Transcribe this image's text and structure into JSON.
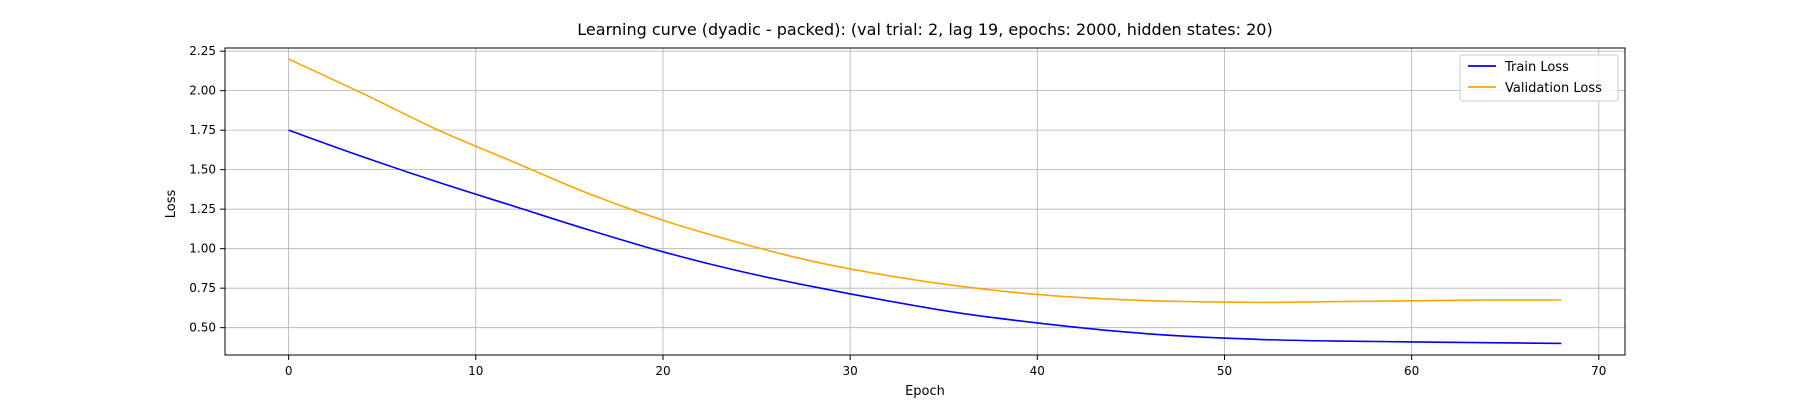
{
  "chart_data": {
    "type": "line",
    "title": "Learning curve (dyadic - packed): (val trial: 2, lag 19, epochs: 2000, hidden states: 20)",
    "xlabel": "Epoch",
    "ylabel": "Loss",
    "xlim": [
      -3.4,
      71.4
    ],
    "ylim": [
      0.327,
      2.27
    ],
    "xticks": [
      0,
      10,
      20,
      30,
      40,
      50,
      60,
      70
    ],
    "yticks": [
      0.5,
      0.75,
      1.0,
      1.25,
      1.5,
      1.75,
      2.0,
      2.25
    ],
    "ytick_labels": [
      "0.50",
      "0.75",
      "1.00",
      "1.25",
      "1.50",
      "1.75",
      "2.00",
      "2.25"
    ],
    "grid": true,
    "legend_position": "top-right",
    "series": [
      {
        "name": "Train Loss",
        "color": "#0000ff",
        "x": [
          0,
          4,
          8,
          12,
          16,
          20,
          24,
          28,
          32,
          36,
          40,
          44,
          48,
          52,
          56,
          60,
          64,
          68
        ],
        "values": [
          1.75,
          1.58,
          1.42,
          1.27,
          1.12,
          0.98,
          0.86,
          0.76,
          0.67,
          0.59,
          0.53,
          0.48,
          0.445,
          0.425,
          0.415,
          0.41,
          0.405,
          0.4
        ]
      },
      {
        "name": "Validation Loss",
        "color": "#ffa500",
        "x": [
          0,
          4,
          8,
          12,
          16,
          20,
          24,
          28,
          32,
          36,
          40,
          44,
          48,
          52,
          56,
          60,
          64,
          68
        ],
        "values": [
          2.2,
          1.98,
          1.75,
          1.55,
          1.35,
          1.18,
          1.04,
          0.92,
          0.83,
          0.76,
          0.71,
          0.68,
          0.665,
          0.66,
          0.665,
          0.67,
          0.675,
          0.675
        ]
      }
    ]
  }
}
